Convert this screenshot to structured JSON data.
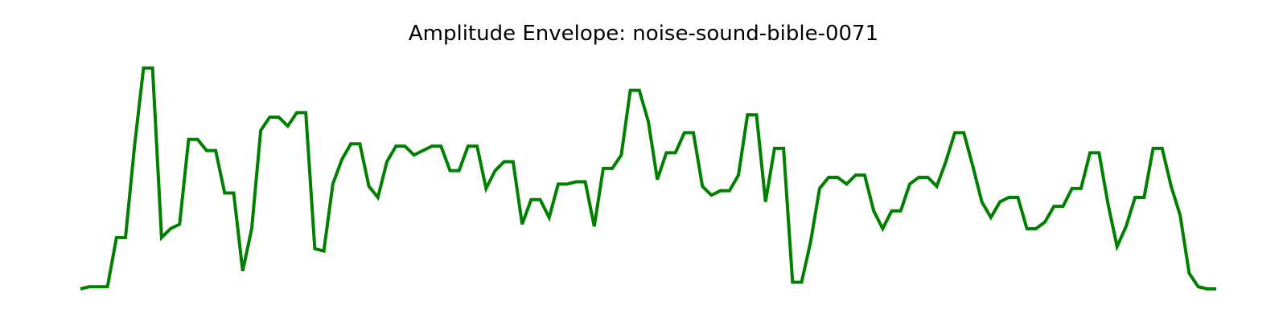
{
  "chart_data": {
    "type": "line",
    "title": "Amplitude Envelope: noise-sound-bible-0071",
    "xlabel": "",
    "ylabel": "",
    "axes_visible": false,
    "grid": false,
    "line_color": "#008000",
    "ylim": [
      0,
      1
    ],
    "series": [
      {
        "values": [
          0.0,
          0.01,
          0.01,
          0.01,
          0.23,
          0.23,
          0.64,
          0.99,
          0.99,
          0.23,
          0.27,
          0.29,
          0.67,
          0.67,
          0.62,
          0.62,
          0.43,
          0.43,
          0.08,
          0.27,
          0.71,
          0.77,
          0.77,
          0.73,
          0.79,
          0.79,
          0.18,
          0.17,
          0.47,
          0.58,
          0.65,
          0.65,
          0.46,
          0.41,
          0.57,
          0.64,
          0.64,
          0.6,
          0.62,
          0.64,
          0.64,
          0.53,
          0.53,
          0.64,
          0.64,
          0.45,
          0.53,
          0.57,
          0.57,
          0.29,
          0.4,
          0.4,
          0.32,
          0.47,
          0.47,
          0.48,
          0.48,
          0.28,
          0.54,
          0.54,
          0.6,
          0.89,
          0.89,
          0.75,
          0.49,
          0.61,
          0.61,
          0.7,
          0.7,
          0.46,
          0.42,
          0.44,
          0.44,
          0.51,
          0.78,
          0.78,
          0.39,
          0.63,
          0.63,
          0.03,
          0.03,
          0.21,
          0.45,
          0.5,
          0.5,
          0.47,
          0.51,
          0.51,
          0.35,
          0.27,
          0.35,
          0.35,
          0.47,
          0.5,
          0.5,
          0.46,
          0.57,
          0.7,
          0.7,
          0.55,
          0.39,
          0.32,
          0.39,
          0.41,
          0.41,
          0.27,
          0.27,
          0.3,
          0.37,
          0.37,
          0.45,
          0.45,
          0.61,
          0.61,
          0.38,
          0.19,
          0.28,
          0.41,
          0.41,
          0.63,
          0.63,
          0.46,
          0.33,
          0.07,
          0.01,
          0.0,
          0.0
        ]
      }
    ]
  }
}
